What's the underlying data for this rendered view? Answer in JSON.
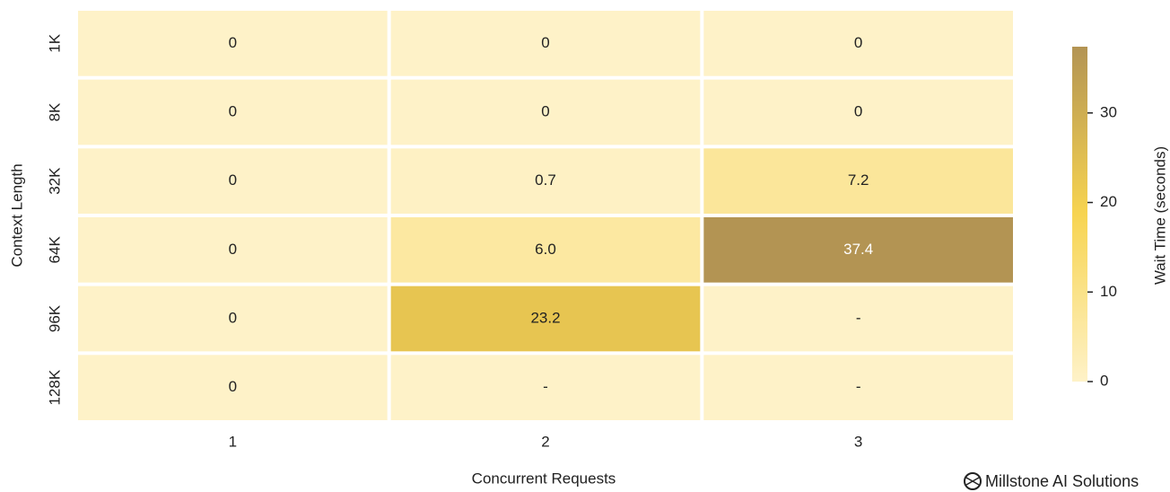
{
  "chart_data": {
    "type": "heatmap",
    "x_label": "Concurrent Requests",
    "y_label": "Context Length",
    "colorbar_label": "Wait Time (seconds)",
    "watermark": "Millstone AI Solutions",
    "x_categories": [
      "1",
      "2",
      "3"
    ],
    "y_categories": [
      "1K",
      "8K",
      "32K",
      "64K",
      "96K",
      "128K"
    ],
    "values": [
      [
        0,
        0,
        0
      ],
      [
        0,
        0,
        0
      ],
      [
        0,
        0.7,
        7.2
      ],
      [
        0,
        6.0,
        37.4
      ],
      [
        0,
        23.2,
        null
      ],
      [
        0,
        null,
        null
      ]
    ],
    "value_labels": [
      [
        "0",
        "0",
        "0"
      ],
      [
        "0",
        "0",
        "0"
      ],
      [
        "0",
        "0.7",
        "7.2"
      ],
      [
        "0",
        "6.0",
        "37.4"
      ],
      [
        "0",
        "23.2",
        "-"
      ],
      [
        "0",
        "-",
        "-"
      ]
    ],
    "colormap": [
      "#fef2c8",
      "#f7d450",
      "#b39453"
    ],
    "clim": [
      0,
      37.4
    ],
    "cticks": [
      0,
      10,
      20,
      30
    ]
  }
}
